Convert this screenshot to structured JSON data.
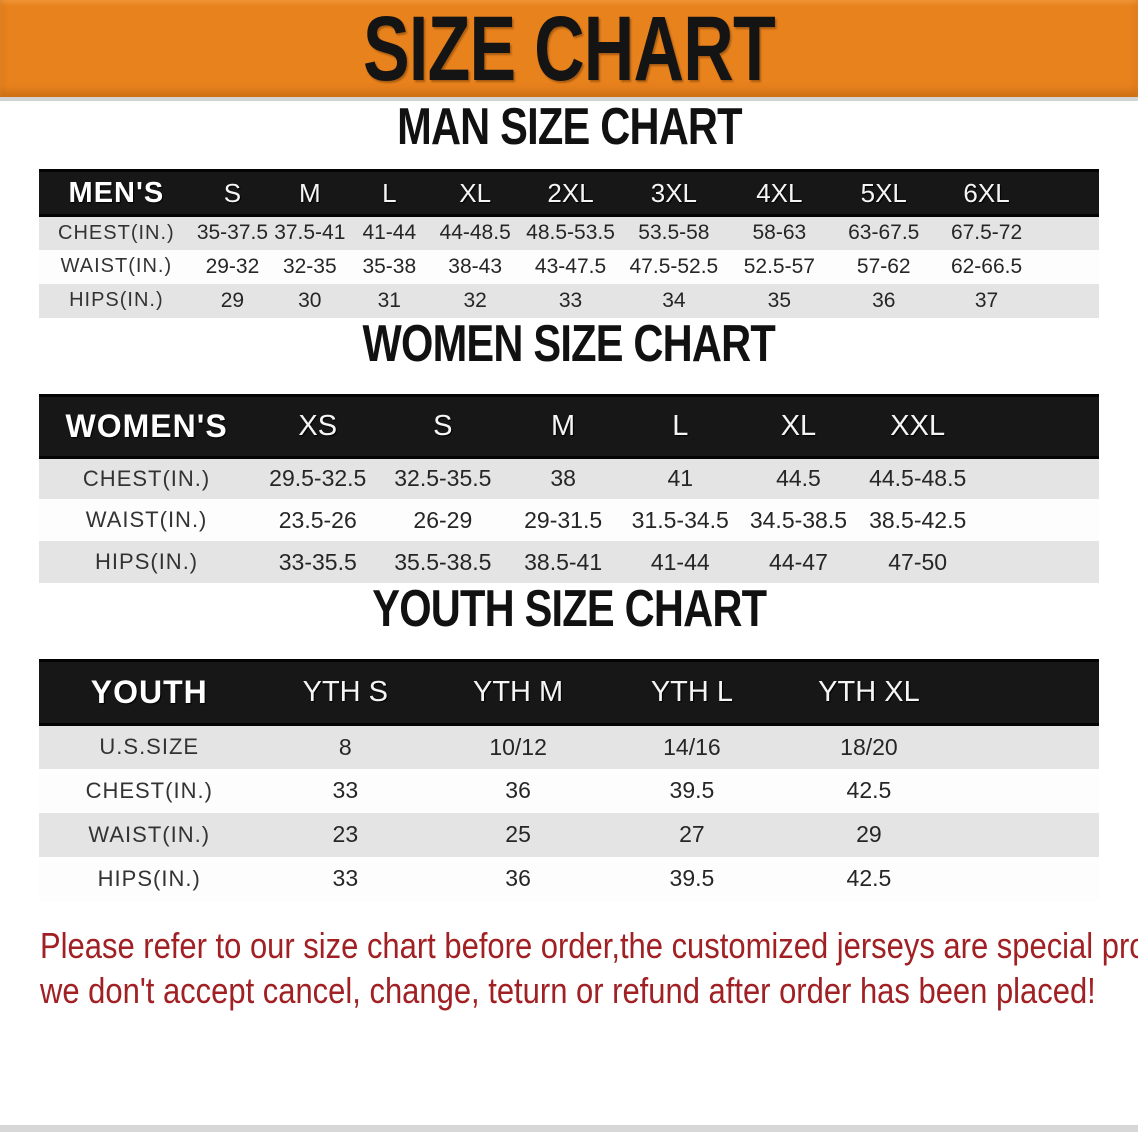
{
  "banner": {
    "title": "SIZE CHART",
    "bg_color": "#e8821d",
    "text_color": "#141414"
  },
  "sections": [
    {
      "id": "men",
      "heading": "MAN SIZE CHART",
      "table": {
        "corner_label": "MEN'S",
        "sizes": [
          "S",
          "M",
          "L",
          "XL",
          "2XL",
          "3XL",
          "4XL",
          "5XL",
          "6XL"
        ],
        "rows": [
          {
            "label": "CHEST(IN.)",
            "values": [
              "35-37.5",
              "37.5-41",
              "41-44",
              "44-48.5",
              "48.5-53.5",
              "53.5-58",
              "58-63",
              "63-67.5",
              "67.5-72"
            ]
          },
          {
            "label": "WAIST(IN.)",
            "values": [
              "29-32",
              "32-35",
              "35-38",
              "38-43",
              "43-47.5",
              "47.5-52.5",
              "52.5-57",
              "57-62",
              "62-66.5"
            ]
          },
          {
            "label": "HIPS(IN.)",
            "values": [
              "29",
              "30",
              "31",
              "32",
              "33",
              "34",
              "35",
              "36",
              "37"
            ]
          }
        ]
      }
    },
    {
      "id": "women",
      "heading": "WOMEN SIZE CHART",
      "table": {
        "corner_label": "WOMEN'S",
        "sizes": [
          "XS",
          "S",
          "M",
          "L",
          "XL",
          "XXL"
        ],
        "rows": [
          {
            "label": "CHEST(IN.)",
            "values": [
              "29.5-32.5",
              "32.5-35.5",
              "38",
              "41",
              "44.5",
              "44.5-48.5"
            ]
          },
          {
            "label": "WAIST(IN.)",
            "values": [
              "23.5-26",
              "26-29",
              "29-31.5",
              "31.5-34.5",
              "34.5-38.5",
              "38.5-42.5"
            ]
          },
          {
            "label": "HIPS(IN.)",
            "values": [
              "33-35.5",
              "35.5-38.5",
              "38.5-41",
              "41-44",
              "44-47",
              "47-50"
            ]
          }
        ]
      }
    },
    {
      "id": "youth",
      "heading": "YOUTH SIZE CHART",
      "table": {
        "corner_label": "YOUTH",
        "sizes": [
          "YTH S",
          "YTH M",
          "YTH L",
          "YTH XL"
        ],
        "rows": [
          {
            "label": "U.S.SIZE",
            "values": [
              "8",
              "10/12",
              "14/16",
              "18/20"
            ]
          },
          {
            "label": "CHEST(IN.)",
            "values": [
              "33",
              "36",
              "39.5",
              "42.5"
            ]
          },
          {
            "label": "WAIST(IN.)",
            "values": [
              "23",
              "25",
              "27",
              "29"
            ]
          },
          {
            "label": "HIPS(IN.)",
            "values": [
              "33",
              "36",
              "39.5",
              "42.5"
            ]
          }
        ]
      }
    }
  ],
  "note": {
    "color": "#a02024",
    "lines": [
      "Please refer to our size chart before order,the customized jerseys are special products,",
      "we don't accept cancel, change, teturn or refund after order has been placed!"
    ]
  }
}
